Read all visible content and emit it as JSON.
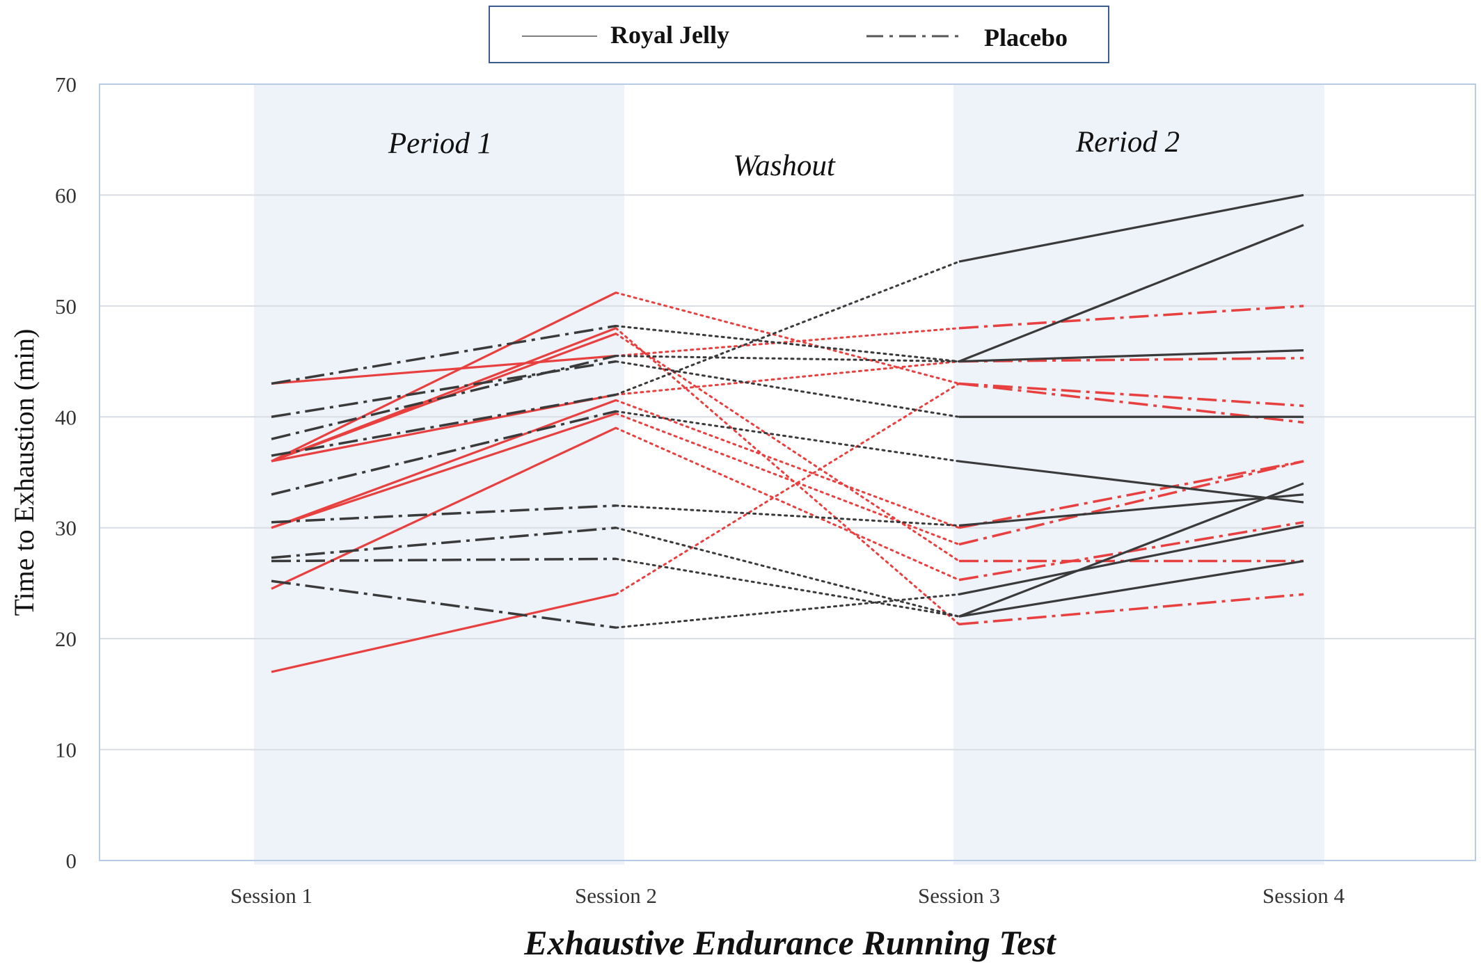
{
  "chart_data": {
    "type": "line",
    "title": "",
    "xlabel": "Exhaustive Endurance Running Test",
    "ylabel": "Time to Exhaustion (min)",
    "categories": [
      "Session 1",
      "Session 2",
      "Session 3",
      "Session 4"
    ],
    "ylim": [
      0,
      70
    ],
    "yticks": [
      0,
      10,
      20,
      30,
      40,
      50,
      60,
      70
    ],
    "grid": true,
    "legend_position": "top-center",
    "legend": [
      {
        "name": "Royal Jelly",
        "style": "solid"
      },
      {
        "name": "Placebo",
        "style": "dash-dot"
      }
    ],
    "regions": [
      {
        "label": "Period 1",
        "from": "Session 1",
        "to": "Session 2",
        "shaded": true
      },
      {
        "label": "Washout",
        "from": "Session 2",
        "to": "Session 3",
        "shaded": false
      },
      {
        "label": "Reriod 2",
        "from": "Session 3",
        "to": "Session 4",
        "shaded": true
      }
    ],
    "colors": {
      "royal_jelly_first": "#e8403f",
      "placebo_first": "#3a3a3a",
      "shade": "#eef2f9",
      "grid": "#d9dde3",
      "frame": "#b8cbe6"
    },
    "series": [
      {
        "group": "royal-jelly-first",
        "values": [
          43,
          45.5,
          48,
          50
        ]
      },
      {
        "group": "royal-jelly-first",
        "values": [
          36,
          51.2,
          43,
          41
        ]
      },
      {
        "group": "royal-jelly-first",
        "values": [
          36,
          48,
          21.3,
          24
        ]
      },
      {
        "group": "royal-jelly-first",
        "values": [
          36,
          47.5,
          27,
          27
        ]
      },
      {
        "group": "royal-jelly-first",
        "values": [
          36,
          42,
          45,
          45.3
        ]
      },
      {
        "group": "royal-jelly-first",
        "values": [
          30,
          41.5,
          30,
          36
        ]
      },
      {
        "group": "royal-jelly-first",
        "values": [
          30,
          40.3,
          28.5,
          36
        ]
      },
      {
        "group": "royal-jelly-first",
        "values": [
          24.5,
          39,
          25.3,
          30.5
        ]
      },
      {
        "group": "royal-jelly-first",
        "values": [
          17,
          24,
          43,
          39.5
        ]
      },
      {
        "group": "placebo-first",
        "values": [
          43,
          48.2,
          45,
          57.3
        ]
      },
      {
        "group": "placebo-first",
        "values": [
          40,
          45,
          40,
          40
        ]
      },
      {
        "group": "placebo-first",
        "values": [
          38,
          45.5,
          45,
          46
        ]
      },
      {
        "group": "placebo-first",
        "values": [
          36.5,
          42,
          54,
          60
        ]
      },
      {
        "group": "placebo-first",
        "values": [
          33,
          40.5,
          36,
          32.3
        ]
      },
      {
        "group": "placebo-first",
        "values": [
          30.5,
          32,
          30.2,
          33
        ]
      },
      {
        "group": "placebo-first",
        "values": [
          27.3,
          30,
          22,
          34
        ]
      },
      {
        "group": "placebo-first",
        "values": [
          27,
          27.2,
          22,
          27
        ]
      },
      {
        "group": "placebo-first",
        "values": [
          25.2,
          21,
          24,
          30.2
        ]
      }
    ]
  }
}
